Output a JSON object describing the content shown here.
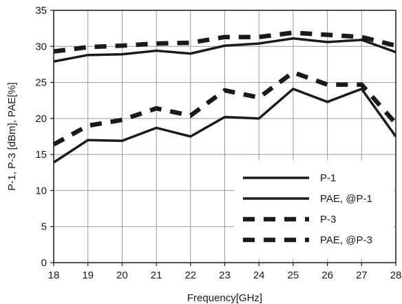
{
  "chart_data": {
    "type": "line",
    "title": "",
    "xlabel": "Frequency[GHz]",
    "ylabel": "P-1, P-3 [dBm], PAE[%]",
    "xlim": [
      18,
      28
    ],
    "ylim": [
      0,
      35
    ],
    "x_ticks": [
      18,
      19,
      20,
      21,
      22,
      23,
      24,
      25,
      26,
      27,
      28
    ],
    "y_ticks": [
      0,
      5,
      10,
      15,
      20,
      25,
      30,
      35
    ],
    "grid": true,
    "legend_position": "lower-right",
    "x": [
      18,
      19,
      20,
      21,
      22,
      23,
      24,
      25,
      26,
      27,
      28
    ],
    "series": [
      {
        "name": "P-1",
        "style": "solid",
        "color": "#1a1a1a",
        "values": [
          27.9,
          28.8,
          28.9,
          29.4,
          29.0,
          30.1,
          30.4,
          31.1,
          30.6,
          30.9,
          29.2
        ]
      },
      {
        "name": "PAE, @P-1",
        "style": "solid",
        "color": "#1a1a1a",
        "values": [
          13.9,
          17.0,
          16.9,
          18.7,
          17.5,
          20.2,
          20.0,
          24.1,
          22.3,
          24.1,
          17.5
        ]
      },
      {
        "name": "P-3",
        "style": "dashed",
        "color": "#1a1a1a",
        "values": [
          29.3,
          29.9,
          30.1,
          30.4,
          30.5,
          31.3,
          31.3,
          31.9,
          31.6,
          31.3,
          30.1
        ]
      },
      {
        "name": "PAE, @P-3",
        "style": "dashed",
        "color": "#1a1a1a",
        "values": [
          16.4,
          19.0,
          19.8,
          21.4,
          20.4,
          23.9,
          22.9,
          26.4,
          24.7,
          24.7,
          19.3
        ]
      }
    ]
  }
}
